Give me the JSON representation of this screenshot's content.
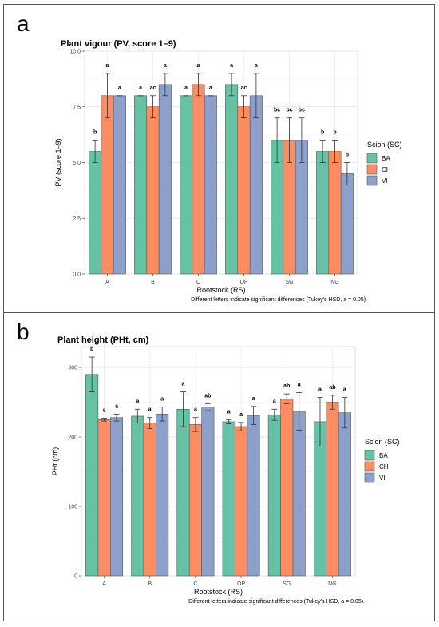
{
  "panels": [
    {
      "letter": "a",
      "chart_data": {
        "type": "bar",
        "title": "Plant vigour (PV, score 1–9)",
        "xlabel": "Rootstock (RS)",
        "ylabel": "PV (score 1–9)",
        "ylim": [
          0,
          10
        ],
        "yticks": [
          "0.0",
          "2.5",
          "5.0",
          "7.5",
          "10.0"
        ],
        "ytick_values": [
          0,
          2.5,
          5,
          7.5,
          10
        ],
        "categories": [
          "A",
          "B",
          "C",
          "OP",
          "SG",
          "NG"
        ],
        "legend_title": "Scion (SC)",
        "legend_position": "right",
        "grid": true,
        "footnote": "Different letters indicate significant differences (Tukey's HSD, a = 0.05).",
        "series": [
          {
            "name": "BA",
            "color": "#66c2a5",
            "values": [
              5.5,
              8.0,
              8.0,
              8.5,
              6.0,
              5.5
            ],
            "err": [
              0.5,
              0,
              0,
              0.5,
              1.0,
              0.5
            ],
            "letters": [
              "b",
              "a",
              "a",
              "a",
              "bc",
              "b"
            ]
          },
          {
            "name": "CH",
            "color": "#fc8d62",
            "values": [
              8.0,
              7.5,
              8.5,
              7.5,
              6.0,
              5.5
            ],
            "err": [
              1.0,
              0.5,
              0.5,
              0.5,
              1.0,
              0.5
            ],
            "letters": [
              "a",
              "ac",
              "a",
              "ac",
              "bc",
              "b"
            ]
          },
          {
            "name": "VI",
            "color": "#8da0cb",
            "values": [
              8.0,
              8.5,
              8.0,
              8.0,
              6.0,
              4.5
            ],
            "err": [
              0,
              0.5,
              0,
              1.0,
              1.0,
              0.5
            ],
            "letters": [
              "a",
              "a",
              "a",
              "a",
              "bc",
              "b"
            ]
          }
        ]
      }
    },
    {
      "letter": "b",
      "chart_data": {
        "type": "bar",
        "title": "Plant height (PHt, cm)",
        "xlabel": "Rootstock (RS)",
        "ylabel": "PHt (cm)",
        "ylim": [
          0,
          330
        ],
        "yticks": [
          "0",
          "100",
          "200",
          "300"
        ],
        "ytick_values": [
          0,
          100,
          200,
          300
        ],
        "categories": [
          "A",
          "B",
          "C",
          "OP",
          "SG",
          "NG"
        ],
        "legend_title": "Scion (SC)",
        "legend_position": "right",
        "grid": true,
        "footnote": "Different letters indicate significant differences (Tukey's HSD, a = 0.05).",
        "series": [
          {
            "name": "BA",
            "color": "#66c2a5",
            "values": [
              290,
              230,
              240,
              222,
              232,
              222
            ],
            "err": [
              25,
              10,
              25,
              3,
              8,
              35
            ],
            "letters": [
              "b",
              "a",
              "a",
              "a",
              "a",
              "a"
            ]
          },
          {
            "name": "CH",
            "color": "#fc8d62",
            "values": [
              225,
              220,
              218,
              215,
              255,
              250
            ],
            "err": [
              2,
              8,
              10,
              6,
              7,
              10
            ],
            "letters": [
              "a",
              "a",
              "a",
              "a",
              "ab",
              "ab"
            ]
          },
          {
            "name": "VI",
            "color": "#8da0cb",
            "values": [
              228,
              233,
              243,
              231,
              237,
              235
            ],
            "err": [
              5,
              10,
              5,
              13,
              27,
              22
            ],
            "letters": [
              "a",
              "a",
              "ab",
              "a",
              "a",
              "a"
            ]
          }
        ]
      }
    }
  ]
}
